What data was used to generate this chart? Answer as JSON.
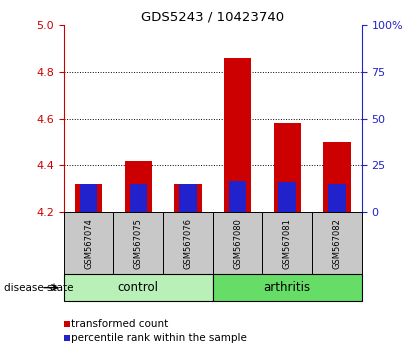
{
  "title": "GDS5243 / 10423740",
  "samples": [
    "GSM567074",
    "GSM567075",
    "GSM567076",
    "GSM567080",
    "GSM567081",
    "GSM567082"
  ],
  "transformed_counts": [
    4.32,
    4.42,
    4.32,
    4.86,
    4.58,
    4.5
  ],
  "percentile_ranks": [
    15,
    15,
    15,
    17,
    16,
    15
  ],
  "bar_bottom": 4.2,
  "ylim_left": [
    4.2,
    5.0
  ],
  "yticks_left": [
    4.2,
    4.4,
    4.6,
    4.8,
    5.0
  ],
  "ylim_right": [
    0,
    100
  ],
  "yticks_right": [
    0,
    25,
    50,
    75,
    100
  ],
  "yticklabels_right": [
    "0",
    "25",
    "50",
    "75",
    "100%"
  ],
  "groups": [
    {
      "label": "control",
      "color": "#b8f0b8"
    },
    {
      "label": "arthritis",
      "color": "#66dd66"
    }
  ],
  "group_ranges": [
    [
      0,
      2
    ],
    [
      3,
      5
    ]
  ],
  "bar_color_red": "#cc0000",
  "bar_color_blue": "#2222cc",
  "bar_width": 0.55,
  "blue_bar_width": 0.35,
  "label_color_left": "#cc0000",
  "label_color_right": "#2222cc",
  "grid_color": "black",
  "background_color": "#ffffff",
  "sample_bg_color": "#c8c8c8",
  "disease_state_label": "disease state",
  "legend_items": [
    "transformed count",
    "percentile rank within the sample"
  ],
  "legend_colors": [
    "#cc0000",
    "#2222cc"
  ]
}
